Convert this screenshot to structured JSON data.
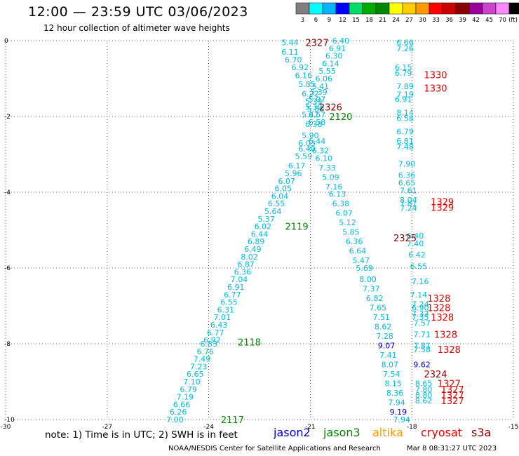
{
  "header": {
    "title": "12:00 — 23:59 UTC 03/06/2023",
    "subtitle": "12 hour collection of altimeter wave heights"
  },
  "footer": {
    "note": "note:  1) Time is in UTC; 2) SWH is in feet",
    "credit": "NOAA/NESDIS Center for Satellite Applications and Research",
    "timestamp": "Mar  8 08:31:27 UTC 2023"
  },
  "missions": [
    {
      "name": "jason2",
      "color": "#0000cc"
    },
    {
      "name": "jason3",
      "color": "#008800"
    },
    {
      "name": "altika",
      "color": "#ff9900"
    },
    {
      "name": "cryosat",
      "color": "#dd0000"
    },
    {
      "name": "s3a",
      "color": "#880000"
    }
  ],
  "colorbar": {
    "labels": [
      "3",
      "6",
      "9",
      "12",
      "15",
      "18",
      "21",
      "24",
      "27",
      "30",
      "33",
      "36",
      "39",
      "42",
      "45",
      "70",
      "(ft)"
    ],
    "colors": [
      "#808080",
      "#00ffff",
      "#00b4ff",
      "#0000ff",
      "#00dd66",
      "#00aa00",
      "#008800",
      "#ffff00",
      "#ffcc00",
      "#ff9900",
      "#ff0000",
      "#cc0000",
      "#880000",
      "#990099",
      "#cc44cc",
      "#ff88ff",
      "#000000"
    ]
  },
  "chart_data": {
    "type": "scatter",
    "title": "12:00 — 23:59 UTC 03/06/2023",
    "subtitle": "12 hour collection of altimeter wave heights",
    "xlim": [
      -30,
      -15
    ],
    "ylim": [
      -10,
      0
    ],
    "xticks": [
      "-30",
      "-27",
      "-24",
      "-21",
      "-18",
      "-15"
    ],
    "yticks": [
      "0",
      "-2",
      "-4",
      "-6",
      "-8",
      "-10"
    ],
    "grid": true,
    "swh_color": "#00bbdd",
    "swh_color_high": "#0000cc",
    "pass_labels": [
      {
        "label": "2327",
        "mission": "s3a",
        "x": -20.8,
        "y": -0.05
      },
      {
        "label": "2326",
        "mission": "s3a",
        "x": -20.4,
        "y": -1.75
      },
      {
        "label": "2120",
        "mission": "jason3",
        "x": -20.1,
        "y": -2.0
      },
      {
        "label": "2119",
        "mission": "jason3",
        "x": -21.4,
        "y": -4.9
      },
      {
        "label": "2325",
        "mission": "s3a",
        "x": -18.2,
        "y": -5.2
      },
      {
        "label": "2118",
        "mission": "jason3",
        "x": -22.8,
        "y": -7.95
      },
      {
        "label": "2324",
        "mission": "s3a",
        "x": -17.3,
        "y": -8.8
      },
      {
        "label": "2117",
        "mission": "jason3",
        "x": -23.3,
        "y": -10.0
      },
      {
        "label": "1330",
        "mission": "cryosat",
        "x": -17.3,
        "y": -0.9
      },
      {
        "label": "1330",
        "mission": "cryosat",
        "x": -17.3,
        "y": -1.25
      },
      {
        "label": "1329",
        "mission": "cryosat",
        "x": -17.1,
        "y": -4.25
      },
      {
        "label": "1329",
        "mission": "cryosat",
        "x": -17.1,
        "y": -4.4
      },
      {
        "label": "1328",
        "mission": "cryosat",
        "x": -17.2,
        "y": -6.8
      },
      {
        "label": "1328",
        "mission": "cryosat",
        "x": -17.2,
        "y": -7.05
      },
      {
        "label": "1328",
        "mission": "cryosat",
        "x": -17.1,
        "y": -7.3
      },
      {
        "label": "1328",
        "mission": "cryosat",
        "x": -17.0,
        "y": -7.75
      },
      {
        "label": "1328",
        "mission": "cryosat",
        "x": -16.9,
        "y": -8.15
      },
      {
        "label": "1327",
        "mission": "cryosat",
        "x": -16.9,
        "y": -9.05
      },
      {
        "label": "1327",
        "mission": "cryosat",
        "x": -16.8,
        "y": -9.2
      },
      {
        "label": "1327",
        "mission": "cryosat",
        "x": -16.8,
        "y": -9.35
      },
      {
        "label": "1327",
        "mission": "cryosat",
        "x": -16.8,
        "y": -9.5
      }
    ],
    "tracks": [
      {
        "name": "jason3-pass-2117-2120",
        "values": [
          [
            "5.44",
            -21.6,
            -0.05
          ],
          [
            "6.11",
            -21.6,
            -0.3
          ],
          [
            "6.70",
            -21.5,
            -0.5
          ],
          [
            "6.92",
            -21.3,
            -0.7
          ],
          [
            "6.16",
            -21.2,
            -0.92
          ],
          [
            "5.85",
            -21.1,
            -1.15
          ],
          [
            "6.22",
            -21.0,
            -1.4
          ],
          [
            "5.39",
            -20.9,
            -1.6
          ],
          [
            "5.80",
            -20.85,
            -1.8
          ],
          [
            "6.57",
            -20.8,
            -1.95
          ],
          [
            "6.58",
            -20.8,
            -2.15
          ],
          [
            "6.38",
            -20.9,
            -2.2
          ],
          [
            "5.90",
            -21.0,
            -2.5
          ],
          [
            "6.03",
            -21.1,
            -2.7
          ],
          [
            "6.40",
            -21.1,
            -2.85
          ],
          [
            "5.59",
            -21.2,
            -3.05
          ],
          [
            "6.17",
            -21.4,
            -3.3
          ],
          [
            "5.96",
            -21.5,
            -3.5
          ],
          [
            "6.07",
            -21.7,
            -3.7
          ],
          [
            "6.05",
            -21.8,
            -3.9
          ],
          [
            "6.04",
            -21.9,
            -4.1
          ],
          [
            "6.55",
            -22.0,
            -4.3
          ],
          [
            "5.64",
            -22.1,
            -4.5
          ],
          [
            "5.37",
            -22.3,
            -4.7
          ],
          [
            "6.02",
            -22.4,
            -4.9
          ],
          [
            "6.44",
            -22.5,
            -5.1
          ],
          [
            "6.89",
            -22.6,
            -5.3
          ],
          [
            "6.49",
            -22.7,
            -5.5
          ],
          [
            "8.02",
            -22.8,
            -5.7
          ],
          [
            "6.87",
            -22.9,
            -5.9
          ],
          [
            "6.36",
            -23.0,
            -6.1
          ],
          [
            "7.04",
            -23.1,
            -6.3
          ],
          [
            "6.91",
            -23.2,
            -6.5
          ],
          [
            "6.77",
            -23.3,
            -6.7
          ],
          [
            "6.55",
            -23.4,
            -6.9
          ],
          [
            "6.31",
            -23.5,
            -7.1
          ],
          [
            "7.01",
            -23.6,
            -7.3
          ],
          [
            "6.43",
            -23.7,
            -7.5
          ],
          [
            "6.77",
            -23.8,
            -7.7
          ],
          [
            "6.92",
            -23.9,
            -7.9
          ],
          [
            "6.83",
            -24.0,
            -8.0
          ],
          [
            "6.76",
            -24.1,
            -8.2
          ],
          [
            "7.49",
            -24.2,
            -8.4
          ],
          [
            "7.23",
            -24.3,
            -8.6
          ],
          [
            "6.65",
            -24.4,
            -8.8
          ],
          [
            "7.10",
            -24.5,
            -9.0
          ],
          [
            "6.79",
            -24.6,
            -9.2
          ],
          [
            "7.19",
            -24.7,
            -9.4
          ],
          [
            "6.66",
            -24.8,
            -9.6
          ],
          [
            "6.26",
            -24.9,
            -9.8
          ],
          [
            "7.00",
            -25.0,
            -10.0
          ]
        ]
      },
      {
        "name": "s3a-pass-2324-2327",
        "values": [
          [
            "6.40",
            -20.1,
            -0.0
          ],
          [
            "6.91",
            -20.2,
            -0.2
          ],
          [
            "6.30",
            -20.3,
            -0.4
          ],
          [
            "6.14",
            -20.4,
            -0.6
          ],
          [
            "5.55",
            -20.5,
            -0.8
          ],
          [
            "6.06",
            -20.6,
            -1.0
          ],
          [
            "5.41",
            -20.7,
            -1.2
          ],
          [
            "5.39",
            -20.75,
            -1.35
          ],
          [
            "5.07",
            -20.8,
            -1.55
          ],
          [
            "5.30",
            -20.9,
            -1.75
          ],
          [
            "5.47",
            -21.0,
            -1.95
          ],
          [
            "6.44",
            -20.8,
            -2.65
          ],
          [
            "6.32",
            -20.7,
            -2.9
          ],
          [
            "6.10",
            -20.6,
            -3.1
          ],
          [
            "7.33",
            -20.5,
            -3.35
          ],
          [
            "5.09",
            -20.4,
            -3.6
          ],
          [
            "7.16",
            -20.3,
            -3.85
          ],
          [
            "6.13",
            -20.2,
            -4.05
          ],
          [
            "6.38",
            -20.1,
            -4.3
          ],
          [
            "6.07",
            -20.0,
            -4.55
          ],
          [
            "5.12",
            -19.9,
            -4.8
          ],
          [
            "5.85",
            -19.8,
            -5.05
          ],
          [
            "6.36",
            -19.7,
            -5.3
          ],
          [
            "6.64",
            -19.6,
            -5.55
          ],
          [
            "5.47",
            -19.5,
            -5.8
          ],
          [
            "5.69",
            -19.4,
            -6.0
          ],
          [
            "8.00",
            -19.3,
            -6.3
          ],
          [
            "7.37",
            -19.2,
            -6.55
          ],
          [
            "6.82",
            -19.1,
            -6.8
          ],
          [
            "7.65",
            -19.0,
            -7.05
          ],
          [
            "7.51",
            -18.9,
            -7.3
          ],
          [
            "8.62",
            -18.85,
            -7.55
          ],
          [
            "7.28",
            -18.8,
            -7.8
          ],
          [
            "9.07",
            -18.75,
            -8.05
          ],
          [
            "7.41",
            -18.7,
            -8.3
          ],
          [
            "8.07",
            -18.65,
            -8.55
          ],
          [
            "7.54",
            -18.6,
            -8.8
          ],
          [
            "8.15",
            -18.55,
            -9.05
          ],
          [
            "8.36",
            -18.5,
            -9.3
          ],
          [
            "7.94",
            -18.45,
            -9.55
          ],
          [
            "9.19",
            -18.4,
            -9.8
          ],
          [
            "7.94",
            -18.3,
            -10.0
          ]
        ]
      },
      {
        "name": "cryosat-pass-1327-1330",
        "values": [
          [
            "6.66",
            -18.2,
            -0.05
          ],
          [
            "7.26",
            -18.2,
            -0.2
          ],
          [
            "6.15",
            -18.25,
            -0.7
          ],
          [
            "6.79",
            -18.25,
            -0.85
          ],
          [
            "7.89",
            -18.2,
            -1.2
          ],
          [
            "7.19",
            -18.2,
            -1.42
          ],
          [
            "6.91",
            -18.25,
            -1.55
          ],
          [
            "8.14",
            -18.2,
            -1.9
          ],
          [
            "6.58",
            -18.2,
            -2.05
          ],
          [
            "6.79",
            -18.2,
            -2.4
          ],
          [
            "6.81",
            -18.2,
            -2.65
          ],
          [
            "7.48",
            -18.2,
            -2.8
          ],
          [
            "7.90",
            -18.15,
            -3.25
          ],
          [
            "6.36",
            -18.15,
            -3.55
          ],
          [
            "6.65",
            -18.15,
            -3.75
          ],
          [
            "7.61",
            -18.1,
            -3.95
          ],
          [
            "8.04",
            -18.1,
            -4.2
          ],
          [
            "7.81",
            -18.1,
            -4.3
          ],
          [
            "7.24",
            -18.1,
            -4.42
          ],
          [
            "6.40",
            -17.9,
            -5.15
          ],
          [
            "7.40",
            -17.9,
            -5.35
          ],
          [
            "6.42",
            -17.85,
            -5.65
          ],
          [
            "6.55",
            -17.8,
            -5.95
          ],
          [
            "7.16",
            -17.75,
            -6.35
          ],
          [
            "7.14",
            -17.8,
            -6.7
          ],
          [
            "7.24",
            -17.75,
            -6.95
          ],
          [
            "6.90",
            -17.75,
            -7.05
          ],
          [
            "7.33",
            -17.75,
            -7.2
          ],
          [
            "7.35",
            -17.75,
            -7.3
          ],
          [
            "7.57",
            -17.7,
            -7.45
          ],
          [
            "7.71",
            -17.7,
            -7.75
          ],
          [
            "7.81",
            -17.7,
            -8.05
          ],
          [
            "7.58",
            -17.7,
            -8.15
          ],
          [
            "9.62",
            -17.7,
            -8.55
          ],
          [
            "8.65",
            -17.65,
            -9.05
          ],
          [
            "7.80",
            -17.65,
            -9.2
          ],
          [
            "8.80",
            -17.65,
            -9.35
          ],
          [
            "8.62",
            -17.65,
            -9.5
          ]
        ]
      }
    ]
  }
}
